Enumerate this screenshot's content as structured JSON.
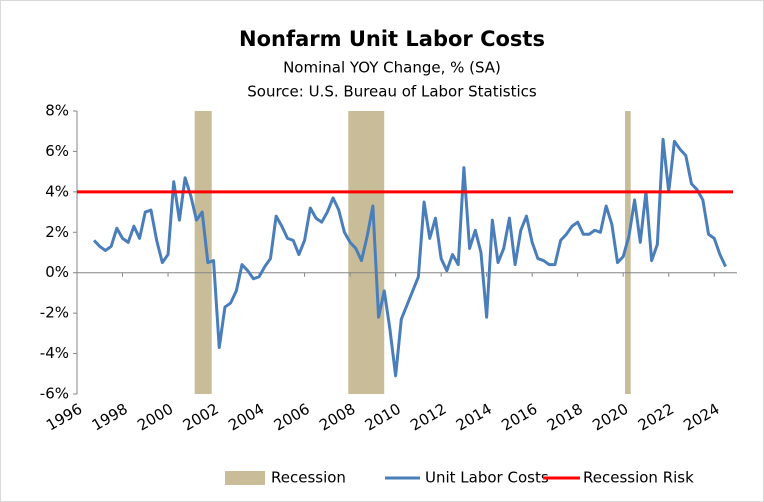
{
  "chart_data": {
    "type": "line",
    "title": "Nonfarm Unit Labor Costs",
    "subtitle": "Nominal YOY Change, % (SA)",
    "source": "Source:  U.S. Bureau of Labor Statistics",
    "xlim": [
      1996,
      2025
    ],
    "xticks": [
      1996,
      1998,
      2000,
      2002,
      2004,
      2006,
      2008,
      2010,
      2012,
      2014,
      2016,
      2018,
      2020,
      2022,
      2024
    ],
    "ylim": [
      -6,
      8
    ],
    "yticks": [
      {
        "value": 8,
        "label": "8%"
      },
      {
        "value": 6,
        "label": "6%"
      },
      {
        "value": 4,
        "label": "4%"
      },
      {
        "value": 2,
        "label": "2%"
      },
      {
        "value": 0,
        "label": "0%"
      },
      {
        "value": -2,
        "label": "-2%"
      },
      {
        "value": -4,
        "label": "-4%"
      },
      {
        "value": -6,
        "label": "-6%"
      }
    ],
    "recession": {
      "name": "Recession",
      "color": "#c8bd98",
      "ranges": [
        [
          2001.17,
          2001.92
        ],
        [
          2007.92,
          2009.5
        ],
        [
          2020.08,
          2020.33
        ]
      ]
    },
    "threshold": {
      "name": "Recession Risk",
      "color": "#ff0000",
      "value": 4
    },
    "series": [
      {
        "name": "Unit Labor Costs",
        "color": "#4a7ebb",
        "x": [
          1996.75,
          1997,
          1997.25,
          1997.5,
          1997.75,
          1998,
          1998.25,
          1998.5,
          1998.75,
          1999,
          1999.25,
          1999.5,
          1999.75,
          2000,
          2000.25,
          2000.5,
          2000.75,
          2001,
          2001.25,
          2001.5,
          2001.75,
          2002,
          2002.25,
          2002.5,
          2002.75,
          2003,
          2003.25,
          2003.5,
          2003.75,
          2004,
          2004.25,
          2004.5,
          2004.75,
          2005,
          2005.25,
          2005.5,
          2005.75,
          2006,
          2006.25,
          2006.5,
          2006.75,
          2007,
          2007.25,
          2007.5,
          2007.75,
          2008,
          2008.25,
          2008.5,
          2008.75,
          2009,
          2009.25,
          2009.5,
          2009.75,
          2010,
          2010.25,
          2010.5,
          2010.75,
          2011,
          2011.25,
          2011.5,
          2011.75,
          2012,
          2012.25,
          2012.5,
          2012.75,
          2013,
          2013.25,
          2013.5,
          2013.75,
          2014,
          2014.25,
          2014.5,
          2014.75,
          2015,
          2015.25,
          2015.5,
          2015.75,
          2016,
          2016.25,
          2016.5,
          2016.75,
          2017,
          2017.25,
          2017.5,
          2017.75,
          2018,
          2018.25,
          2018.5,
          2018.75,
          2019,
          2019.25,
          2019.5,
          2019.75,
          2020,
          2020.25,
          2020.5,
          2020.75,
          2021,
          2021.25,
          2021.5,
          2021.75,
          2022,
          2022.25,
          2022.5,
          2022.75,
          2023,
          2023.25,
          2023.5,
          2023.75,
          2024,
          2024.25,
          2024.5
        ],
        "values": [
          1.6,
          1.3,
          1.1,
          1.3,
          2.2,
          1.7,
          1.5,
          2.3,
          1.7,
          3.0,
          3.1,
          1.6,
          0.5,
          0.9,
          4.5,
          2.6,
          4.7,
          3.8,
          2.6,
          3.0,
          0.5,
          0.6,
          -3.7,
          -1.7,
          -1.5,
          -0.9,
          0.4,
          0.1,
          -0.3,
          -0.2,
          0.3,
          0.7,
          2.8,
          2.3,
          1.7,
          1.6,
          0.9,
          1.6,
          3.2,
          2.7,
          2.5,
          3.0,
          3.7,
          3.1,
          2.0,
          1.5,
          1.2,
          0.6,
          1.8,
          3.3,
          -2.2,
          -0.9,
          -2.8,
          -5.1,
          -2.3,
          -1.6,
          -0.9,
          -0.2,
          3.5,
          1.7,
          2.7,
          0.7,
          0.1,
          0.9,
          0.4,
          5.2,
          1.2,
          2.1,
          1.0,
          -2.2,
          2.6,
          0.5,
          1.2,
          2.7,
          0.4,
          2.1,
          2.8,
          1.5,
          0.7,
          0.6,
          0.4,
          0.4,
          1.6,
          1.9,
          2.3,
          2.5,
          1.9,
          1.9,
          2.1,
          2.0,
          3.3,
          2.4,
          0.5,
          0.8,
          1.8,
          3.6,
          1.5,
          4.0,
          0.6,
          1.4,
          6.6,
          4.0,
          6.5,
          6.1,
          5.8,
          4.4,
          4.1,
          3.6,
          1.9,
          1.7,
          0.9,
          0.3
        ]
      }
    ]
  }
}
